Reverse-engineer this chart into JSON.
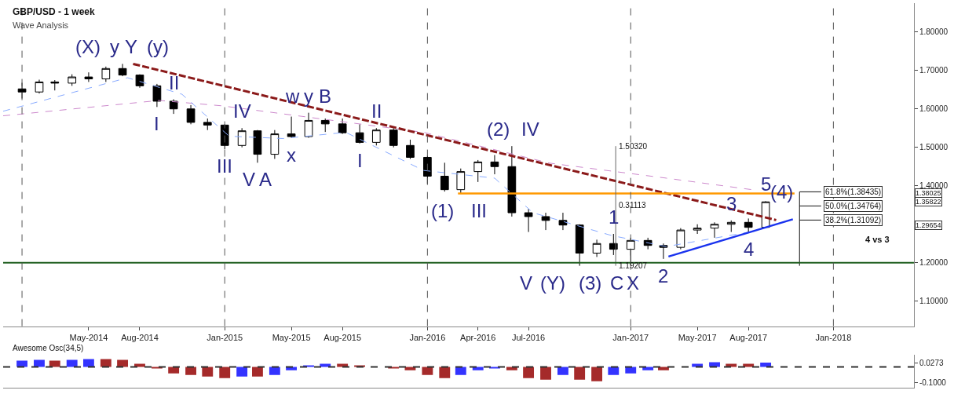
{
  "chart_data": [
    {
      "type": "candlestick",
      "title": "GBP/USD - 1 week",
      "subtitle": "Wave Analysis",
      "x": [
        "2014-01",
        "2014-02",
        "2014-03",
        "2014-04",
        "2014-05",
        "2014-06",
        "2014-07",
        "2014-08",
        "2014-09",
        "2014-10",
        "2014-11",
        "2014-12",
        "2015-01",
        "2015-02",
        "2015-03",
        "2015-04",
        "2015-05",
        "2015-06",
        "2015-07",
        "2015-08",
        "2015-09",
        "2015-10",
        "2015-11",
        "2015-12",
        "2016-01",
        "2016-02",
        "2016-03",
        "2016-04",
        "2016-05",
        "2016-06",
        "2016-07",
        "2016-08",
        "2016-09",
        "2016-10",
        "2016-11",
        "2016-12",
        "2017-01",
        "2017-02",
        "2017-03",
        "2017-04",
        "2017-05",
        "2017-06",
        "2017-07",
        "2017-08",
        "2017-09"
      ],
      "ohlc": [
        [
          1.652,
          1.668,
          1.627,
          1.644
        ],
        [
          1.644,
          1.676,
          1.64,
          1.67
        ],
        [
          1.67,
          1.675,
          1.648,
          1.667
        ],
        [
          1.667,
          1.69,
          1.66,
          1.683
        ],
        [
          1.683,
          1.695,
          1.67,
          1.678
        ],
        [
          1.678,
          1.71,
          1.67,
          1.705
        ],
        [
          1.705,
          1.717,
          1.685,
          1.688
        ],
        [
          1.688,
          1.69,
          1.655,
          1.66
        ],
        [
          1.66,
          1.665,
          1.605,
          1.62
        ],
        [
          1.62,
          1.625,
          1.587,
          1.6
        ],
        [
          1.6,
          1.61,
          1.56,
          1.565
        ],
        [
          1.565,
          1.575,
          1.545,
          1.558
        ],
        [
          1.558,
          1.56,
          1.495,
          1.505
        ],
        [
          1.505,
          1.55,
          1.5,
          1.543
        ],
        [
          1.543,
          1.545,
          1.46,
          1.482
        ],
        [
          1.482,
          1.545,
          1.47,
          1.535
        ],
        [
          1.535,
          1.58,
          1.525,
          1.528
        ],
        [
          1.528,
          1.59,
          1.525,
          1.57
        ],
        [
          1.57,
          1.575,
          1.54,
          1.561
        ],
        [
          1.561,
          1.575,
          1.535,
          1.538
        ],
        [
          1.538,
          1.56,
          1.51,
          1.513
        ],
        [
          1.513,
          1.55,
          1.505,
          1.545
        ],
        [
          1.545,
          1.55,
          1.5,
          1.505
        ],
        [
          1.505,
          1.52,
          1.47,
          1.474
        ],
        [
          1.474,
          1.478,
          1.405,
          1.425
        ],
        [
          1.425,
          1.46,
          1.385,
          1.39
        ],
        [
          1.39,
          1.445,
          1.38,
          1.437
        ],
        [
          1.437,
          1.467,
          1.41,
          1.462
        ],
        [
          1.462,
          1.48,
          1.43,
          1.45
        ],
        [
          1.45,
          1.5032,
          1.32,
          1.33
        ],
        [
          1.33,
          1.34,
          1.28,
          1.32
        ],
        [
          1.32,
          1.33,
          1.285,
          1.31
        ],
        [
          1.31,
          1.33,
          1.285,
          1.298
        ],
        [
          1.298,
          1.3,
          1.19207,
          1.225
        ],
        [
          1.225,
          1.26,
          1.215,
          1.25
        ],
        [
          1.25,
          1.275,
          1.22,
          1.235
        ],
        [
          1.235,
          1.265,
          1.2,
          1.258
        ],
        [
          1.258,
          1.265,
          1.235,
          1.245
        ],
        [
          1.245,
          1.25,
          1.21,
          1.24
        ],
        [
          1.24,
          1.29,
          1.235,
          1.285
        ],
        [
          1.285,
          1.3,
          1.275,
          1.29
        ],
        [
          1.29,
          1.305,
          1.265,
          1.3
        ],
        [
          1.3,
          1.31,
          1.28,
          1.305
        ],
        [
          1.305,
          1.315,
          1.28,
          1.292
        ],
        [
          1.292,
          1.36,
          1.29,
          1.35822
        ]
      ],
      "series": [
        {
          "type": "line",
          "color": "#cc88cc",
          "line_style": "dashed",
          "x": [
            "2013-11-28",
            "2014-09-05",
            "2014-12-27",
            "2015-12-25",
            "2016-08-08",
            "2017-03-06",
            "2017-08-07"
          ],
          "values": [
            1.582,
            1.622,
            1.608,
            1.539,
            1.459,
            1.42,
            1.39
          ]
        },
        {
          "type": "line",
          "color": "#88aaff",
          "line_style": "dashed",
          "x": [
            "2013-11-28",
            "2014-07-10",
            "2014-10-16",
            "2015-01-09",
            "2015-04-16",
            "2015-08-07",
            "2015-12-25",
            "2016-05-01",
            "2016-07-09",
            "2016-11-27",
            "2017-03-06",
            "2017-08-07"
          ],
          "values": [
            1.594,
            1.681,
            1.638,
            1.529,
            1.523,
            1.539,
            1.44,
            1.42,
            1.33,
            1.271,
            1.242,
            1.281
          ]
        },
        {
          "type": "line",
          "color": "#8b1a1a",
          "line_style": "dashed",
          "x": [
            "2014-07-20",
            "2017-09-20"
          ],
          "values": [
            1.717,
            1.311
          ]
        },
        {
          "type": "line",
          "color": "#1a33ee",
          "line_style": "solid",
          "x": [
            "2017-03-10",
            "2017-10-20"
          ],
          "values": [
            1.216,
            1.313
          ]
        },
        {
          "type": "line",
          "color": "#ff9900",
          "line_style": "solid",
          "x": [
            "2016-02-25",
            "2017-10-23"
          ],
          "values": [
            1.38025,
            1.38025
          ]
        },
        {
          "type": "line",
          "color": "#666666",
          "line_style": "solid",
          "x": [
            "2016-12-05",
            "2016-12-05"
          ],
          "values": [
            1.19207,
            1.5032
          ]
        },
        {
          "type": "line",
          "color": "#111111",
          "line_style": "solid",
          "x": [
            "2017-11-01",
            "2017-11-01"
          ],
          "values": [
            1.38435,
            1.19207
          ]
        },
        {
          "type": "line",
          "color": "#111111",
          "line_style": "solid",
          "x": [
            "2017-11-01",
            "2017-12-10"
          ],
          "values": [
            1.38435,
            1.38435
          ]
        },
        {
          "type": "line",
          "color": "#111111",
          "line_style": "solid",
          "x": [
            "2017-11-01",
            "2017-12-10"
          ],
          "values": [
            1.34764,
            1.34764
          ]
        },
        {
          "type": "line",
          "color": "#111111",
          "line_style": "solid",
          "x": [
            "2017-11-01",
            "2017-12-10"
          ],
          "values": [
            1.31092,
            1.31092
          ]
        }
      ],
      "ref_lines": [
        {
          "axis": "y",
          "value": 1.2,
          "color": "#1f5f1f",
          "line_style": "solid"
        },
        {
          "axis": "x",
          "value": "2014-01-01",
          "color": "#555555",
          "line_style": "dashed"
        },
        {
          "axis": "x",
          "value": "2015-01-01",
          "color": "#555555",
          "line_style": "dashed"
        },
        {
          "axis": "x",
          "value": "2016-01-01",
          "color": "#555555",
          "line_style": "dashed"
        },
        {
          "axis": "x",
          "value": "2017-01-01",
          "color": "#555555",
          "line_style": "dashed"
        },
        {
          "axis": "x",
          "value": "2018-01-01",
          "color": "#555555",
          "line_style": "dashed"
        }
      ],
      "xlim": [
        "2013-11-28",
        "2018-05-26"
      ],
      "xticks": [
        {
          "value": "2014-05-01",
          "label": "May-2014"
        },
        {
          "value": "2014-08-01",
          "label": "Aug-2014"
        },
        {
          "value": "2015-01-01",
          "label": "Jan-2015"
        },
        {
          "value": "2015-05-01",
          "label": "May-2015"
        },
        {
          "value": "2015-08-01",
          "label": "Aug-2015"
        },
        {
          "value": "2016-01-01",
          "label": "Jan-2016"
        },
        {
          "value": "2016-04-01",
          "label": "Apr-2016"
        },
        {
          "value": "2016-07-01",
          "label": "Jul-2016"
        },
        {
          "value": "2017-01-01",
          "label": "Jan-2017"
        },
        {
          "value": "2017-05-01",
          "label": "May-2017"
        },
        {
          "value": "2017-08-01",
          "label": "Aug-2017"
        },
        {
          "value": "2018-01-01",
          "label": "Jan-2018"
        }
      ],
      "ylim": [
        1.035,
        1.875
      ],
      "yticks": [
        {
          "value": 1.1,
          "label": "1.10000"
        },
        {
          "value": 1.2,
          "label": "1.20000"
        },
        {
          "value": 1.3,
          "label": null
        },
        {
          "value": 1.4,
          "label": "1.40000"
        },
        {
          "value": 1.5,
          "label": "1.50000"
        },
        {
          "value": 1.6,
          "label": "1.60000"
        },
        {
          "value": 1.7,
          "label": "1.70000"
        },
        {
          "value": 1.8,
          "label": "1.80000"
        }
      ],
      "annotations": [
        {
          "text": "(X)",
          "x": "2014-07",
          "y": 1.717
        },
        {
          "text": "y",
          "x": "2014-07",
          "y": 1.717
        },
        {
          "text": "Y",
          "x": "2014-07",
          "y": 1.717
        },
        {
          "text": "(y)",
          "x": "2014-07",
          "y": 1.717
        },
        {
          "text": "II",
          "x": "2014-10",
          "y": 1.625
        },
        {
          "text": "I",
          "x": "2014-09",
          "y": 1.605
        },
        {
          "text": "w",
          "x": "2015-06",
          "y": 1.59
        },
        {
          "text": "y",
          "x": "2015-06",
          "y": 1.59
        },
        {
          "text": "B",
          "x": "2015-06",
          "y": 1.59
        },
        {
          "text": "IV",
          "x": "2015-02",
          "y": 1.55
        },
        {
          "text": "III",
          "x": "2015-01",
          "y": 1.495
        },
        {
          "text": "V",
          "x": "2015-03",
          "y": 1.46
        },
        {
          "text": "A",
          "x": "2015-03",
          "y": 1.46
        },
        {
          "text": "x",
          "x": "2015-05",
          "y": 1.525
        },
        {
          "text": "II",
          "x": "2015-10",
          "y": 1.55
        },
        {
          "text": "I",
          "x": "2015-09",
          "y": 1.51
        },
        {
          "text": "(1)",
          "x": "2016-03",
          "y": 1.38
        },
        {
          "text": "III",
          "x": "2016-03",
          "y": 1.38
        },
        {
          "text": "(2)",
          "x": "2016-06",
          "y": 1.5032
        },
        {
          "text": "IV",
          "x": "2016-06",
          "y": 1.5032
        },
        {
          "text": "1",
          "x": "2016-12",
          "y": 1.275
        },
        {
          "text": "V",
          "x": "2016-10",
          "y": 1.19207
        },
        {
          "text": "(Y)",
          "x": "2016-10",
          "y": 1.19207
        },
        {
          "text": "(3)",
          "x": "2016-10",
          "y": 1.19207
        },
        {
          "text": "C",
          "x": "2016-10",
          "y": 1.19207
        },
        {
          "text": "X",
          "x": "2016-10",
          "y": 1.19207
        },
        {
          "text": "2",
          "x": "2017-03",
          "y": 1.21
        },
        {
          "text": "3",
          "x": "2017-07",
          "y": 1.31
        },
        {
          "text": "4",
          "x": "2017-08",
          "y": 1.28
        },
        {
          "text": "5",
          "x": "2017-09",
          "y": 1.36
        },
        {
          "text": "(4)",
          "x": "2017-11-01",
          "y": 1.38435
        },
        {
          "text": "1.50320",
          "x": "2016-12-05",
          "y": 1.5032
        },
        {
          "text": "0.31113",
          "x": "2016-12-05",
          "y": 1.35
        },
        {
          "text": "1.19207",
          "x": "2016-12-05",
          "y": 1.19207
        },
        {
          "text": "61.8%(1.38435)",
          "x": "2017-12-10",
          "y": 1.38435
        },
        {
          "text": "50.0%(1.34764)",
          "x": "2017-12-10",
          "y": 1.34764
        },
        {
          "text": "38.2%(1.31092)",
          "x": "2017-12-10",
          "y": 1.31092
        },
        "4 vs 3",
        {
          "text": "1.38025",
          "y": 1.38025
        },
        {
          "text": "1.35822",
          "y": 1.35822
        },
        {
          "text": "1.29654",
          "y": 1.29654
        }
      ]
    },
    {
      "type": "bar",
      "title": "Awesome Osc(34,5)",
      "x": [
        "2014-01",
        "2014-02",
        "2014-03",
        "2014-04",
        "2014-05",
        "2014-06",
        "2014-07",
        "2014-08",
        "2014-09",
        "2014-10",
        "2014-11",
        "2014-12",
        "2015-01",
        "2015-02",
        "2015-03",
        "2015-04",
        "2015-05",
        "2015-06",
        "2015-07",
        "2015-08",
        "2015-09",
        "2015-10",
        "2015-11",
        "2015-12",
        "2016-01",
        "2016-02",
        "2016-03",
        "2016-04",
        "2016-05",
        "2016-06",
        "2016-07",
        "2016-08",
        "2016-09",
        "2016-10",
        "2016-11",
        "2016-12",
        "2017-01",
        "2017-02",
        "2017-03",
        "2017-04",
        "2017-05",
        "2017-06",
        "2017-07",
        "2017-08",
        "2017-09"
      ],
      "values": [
        0.04,
        0.045,
        0.04,
        0.045,
        0.05,
        0.05,
        0.045,
        0.02,
        -0.01,
        -0.04,
        -0.05,
        -0.06,
        -0.07,
        -0.06,
        -0.06,
        -0.05,
        -0.02,
        0.01,
        0.02,
        0.02,
        0.01,
        0.0,
        -0.01,
        -0.02,
        -0.05,
        -0.07,
        -0.05,
        -0.02,
        -0.01,
        -0.02,
        -0.07,
        -0.08,
        -0.05,
        -0.08,
        -0.09,
        -0.05,
        -0.04,
        -0.02,
        -0.02,
        0.0,
        0.02,
        0.03,
        0.02,
        0.02,
        0.0273
      ],
      "colors": [
        "#3333ff",
        "#3333ff",
        "#a52a2a",
        "#3333ff",
        "#3333ff",
        "#a52a2a",
        "#a52a2a",
        "#a52a2a",
        "#a52a2a",
        "#a52a2a",
        "#a52a2a",
        "#a52a2a",
        "#a52a2a",
        "#3333ff",
        "#a52a2a",
        "#3333ff",
        "#3333ff",
        "#3333ff",
        "#3333ff",
        "#a52a2a",
        "#a52a2a",
        "#a52a2a",
        "#a52a2a",
        "#a52a2a",
        "#a52a2a",
        "#a52a2a",
        "#3333ff",
        "#3333ff",
        "#3333ff",
        "#a52a2a",
        "#a52a2a",
        "#a52a2a",
        "#3333ff",
        "#a52a2a",
        "#a52a2a",
        "#3333ff",
        "#3333ff",
        "#3333ff",
        "#a52a2a",
        "#3333ff",
        "#3333ff",
        "#3333ff",
        "#a52a2a",
        "#a52a2a",
        "#3333ff"
      ],
      "ylim": [
        -0.13,
        0.075
      ],
      "yticks": [
        {
          "value": 0.0273,
          "label": "0.0273"
        },
        {
          "value": -0.1,
          "label": "-0.1000"
        }
      ],
      "ref_lines": [
        {
          "axis": "y",
          "value": 0,
          "color": "#333333",
          "line_style": "dashed"
        }
      ],
      "xlim": [
        "2013-11-28",
        "2018-05-26"
      ],
      "tick_labels": "y"
    }
  ]
}
